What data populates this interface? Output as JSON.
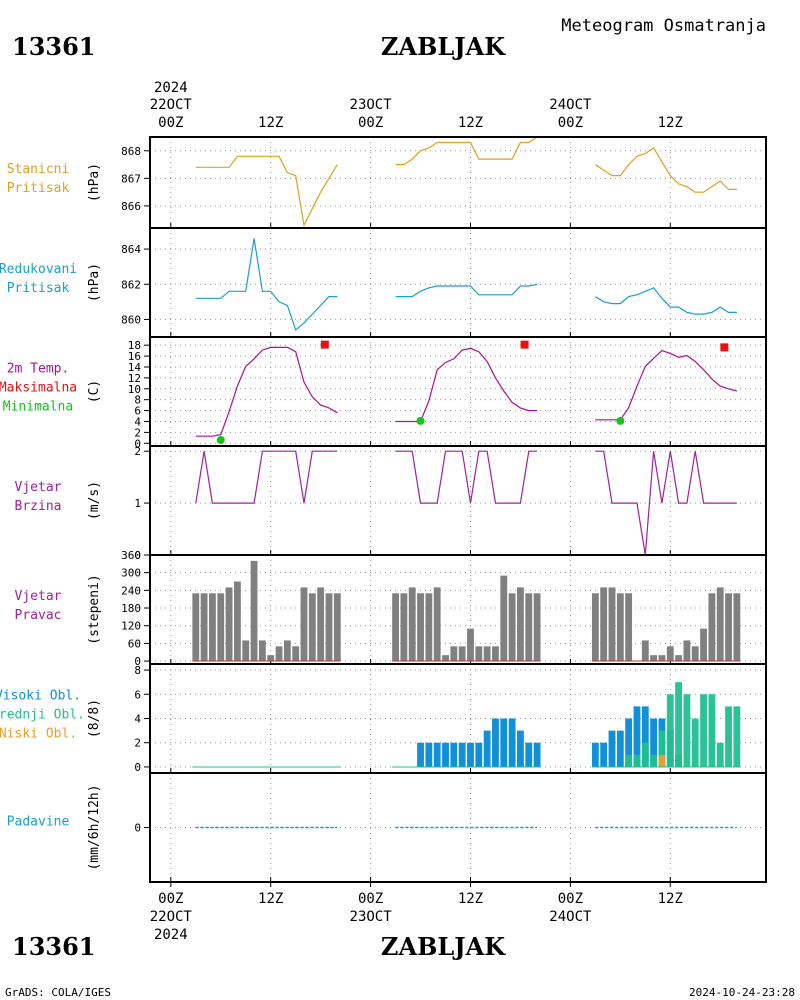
{
  "header": {
    "station_id": "13361",
    "station_name": "ZABLJAK",
    "subtitle": "Meteogram Osmatranja"
  },
  "footer": {
    "station_id": "13361",
    "station_name": "ZABLJAK",
    "credit": "GrADS: COLA/IGES",
    "timestamp": "2024-10-24-23:28"
  },
  "time_axis": {
    "year": "2024",
    "ticks": [
      {
        "hour": 0,
        "top": "00Z",
        "date": "22OCT"
      },
      {
        "hour": 12,
        "top": "12Z",
        "date": ""
      },
      {
        "hour": 24,
        "top": "00Z",
        "date": "23OCT"
      },
      {
        "hour": 36,
        "top": "12Z",
        "date": ""
      },
      {
        "hour": 48,
        "top": "00Z",
        "date": "24OCT"
      },
      {
        "hour": 60,
        "top": "12Z",
        "date": ""
      }
    ]
  },
  "colors": {
    "pressure": "#e0a020",
    "reduced": "#1aa0c8",
    "temp": "#b01090",
    "max": "#e81010",
    "min": "#10c810",
    "wind": "#a020a0",
    "bars": "#808080",
    "low": "#e8a030",
    "mid": "#20c090",
    "high": "#1090d8",
    "precip": "#1aa0c8"
  },
  "chart_data": [
    {
      "type": "line",
      "id": "station-pressure",
      "label": [
        "Stanicni",
        "Pritisak"
      ],
      "ylabel": "(hPa)",
      "ylim": [
        865.2,
        868.5
      ],
      "yticks": [
        866,
        867,
        868
      ],
      "series": [
        {
          "x": [
            3,
            4,
            5,
            6,
            7,
            8,
            9,
            10,
            11,
            12,
            13,
            14,
            15,
            16,
            17,
            18,
            19,
            20
          ],
          "y": [
            867.4,
            867.4,
            867.4,
            867.4,
            867.4,
            867.8,
            867.8,
            867.8,
            867.8,
            867.8,
            867.8,
            867.2,
            867.1,
            865.3,
            865.9,
            866.5,
            867.0,
            867.5
          ]
        },
        {
          "x": [
            27,
            28,
            29,
            30,
            31,
            32,
            33,
            34,
            35,
            36,
            37,
            38,
            39,
            40,
            41,
            42,
            43,
            44
          ],
          "y": [
            867.5,
            867.5,
            867.7,
            868.0,
            868.1,
            868.3,
            868.3,
            868.3,
            868.3,
            868.3,
            867.7,
            867.7,
            867.7,
            867.7,
            867.7,
            868.3,
            868.3,
            868.5
          ]
        },
        {
          "x": [
            51,
            52,
            53,
            54,
            55,
            56,
            57,
            58,
            59,
            60,
            61,
            62,
            63,
            64,
            65,
            66,
            67,
            68
          ],
          "y": [
            867.5,
            867.3,
            867.1,
            867.1,
            867.5,
            867.8,
            867.9,
            868.1,
            867.6,
            867.1,
            866.8,
            866.7,
            866.5,
            866.5,
            866.7,
            866.9,
            866.6,
            866.6
          ]
        }
      ]
    },
    {
      "type": "line",
      "id": "reduced-pressure",
      "label": [
        "Redukovani",
        "Pritisak"
      ],
      "ylabel": "(hPa)",
      "ylim": [
        859.0,
        865.2
      ],
      "yticks": [
        860,
        862,
        864
      ],
      "series": [
        {
          "x": [
            3,
            4,
            5,
            6,
            7,
            8,
            9,
            10,
            11,
            12,
            13,
            14,
            15,
            16,
            17,
            18,
            19,
            20
          ],
          "y": [
            861.2,
            861.2,
            861.2,
            861.2,
            861.6,
            861.6,
            861.6,
            864.6,
            861.6,
            861.6,
            861.0,
            860.8,
            859.4,
            859.8,
            860.3,
            860.8,
            861.3,
            861.3
          ]
        },
        {
          "x": [
            27,
            28,
            29,
            30,
            31,
            32,
            33,
            34,
            35,
            36,
            37,
            38,
            39,
            40,
            41,
            42,
            43,
            44
          ],
          "y": [
            861.3,
            861.3,
            861.3,
            861.6,
            861.8,
            861.9,
            861.9,
            861.9,
            861.9,
            861.9,
            861.4,
            861.4,
            861.4,
            861.4,
            861.4,
            861.9,
            861.9,
            862.0
          ]
        },
        {
          "x": [
            51,
            52,
            53,
            54,
            55,
            56,
            57,
            58,
            59,
            60,
            61,
            62,
            63,
            64,
            65,
            66,
            67,
            68
          ],
          "y": [
            861.3,
            861.0,
            860.9,
            860.9,
            861.3,
            861.4,
            861.6,
            861.8,
            861.2,
            860.7,
            860.7,
            860.4,
            860.3,
            860.3,
            860.4,
            860.7,
            860.4,
            860.4
          ]
        }
      ]
    },
    {
      "type": "line",
      "id": "temperature",
      "label": [
        "2m Temp.",
        "Maksimalna",
        "Minimalna"
      ],
      "ylabel": "(C)",
      "ylim": [
        -0.5,
        19.5
      ],
      "yticks": [
        0,
        2,
        4,
        6,
        8,
        10,
        12,
        14,
        16,
        18
      ],
      "series": [
        {
          "x": [
            3,
            4,
            5,
            6,
            7,
            8,
            9,
            10,
            11,
            12,
            13,
            14,
            15,
            16,
            17,
            18,
            19,
            20
          ],
          "y": [
            1.3,
            1.3,
            1.3,
            1.6,
            5.8,
            10.5,
            14.1,
            15.5,
            17.1,
            17.6,
            17.6,
            17.6,
            16.8,
            11.2,
            8.5,
            7.0,
            6.5,
            5.6
          ]
        },
        {
          "x": [
            27,
            28,
            29,
            30,
            31,
            32,
            33,
            34,
            35,
            36,
            37,
            38,
            39,
            40,
            41,
            42,
            43,
            44
          ],
          "y": [
            4.0,
            4.0,
            4.0,
            4.0,
            7.8,
            13.5,
            14.8,
            15.5,
            17.1,
            17.4,
            16.8,
            15.0,
            12.0,
            9.6,
            7.5,
            6.5,
            6.0,
            6.0
          ]
        },
        {
          "x": [
            51,
            52,
            53,
            54,
            55,
            56,
            57,
            58,
            59,
            60,
            61,
            62,
            63,
            64,
            65,
            66,
            67,
            68
          ],
          "y": [
            4.3,
            4.3,
            4.3,
            4.3,
            6.5,
            10.5,
            14.1,
            15.6,
            17.0,
            16.5,
            15.8,
            16.1,
            15.0,
            13.5,
            11.8,
            10.5,
            10.0,
            9.6
          ]
        }
      ],
      "maximum": [
        {
          "x": 18.5,
          "y": 18.1
        },
        {
          "x": 42.5,
          "y": 18.1
        },
        {
          "x": 66.5,
          "y": 17.6
        }
      ],
      "minimum": [
        {
          "x": 6,
          "y": 0.6
        },
        {
          "x": 30,
          "y": 4.1
        },
        {
          "x": 54,
          "y": 4.1
        }
      ]
    },
    {
      "type": "line",
      "id": "wind-speed",
      "label": [
        "Vjetar",
        "Brzina"
      ],
      "ylabel": "(m/s)",
      "ylim": [
        0,
        2.1
      ],
      "yticks": [
        0,
        1,
        2
      ],
      "series": [
        {
          "x": [
            3,
            4,
            5,
            6,
            7,
            8,
            9,
            10,
            11,
            12,
            13,
            14,
            15,
            16,
            17,
            18,
            19,
            20
          ],
          "y": [
            1,
            2,
            1,
            1,
            1,
            1,
            1,
            1,
            2,
            2,
            2,
            2,
            2,
            1,
            2,
            2,
            2,
            2
          ]
        },
        {
          "x": [
            27,
            28,
            29,
            30,
            31,
            32,
            33,
            34,
            35,
            36,
            37,
            38,
            39,
            40,
            41,
            42,
            43,
            44
          ],
          "y": [
            2,
            2,
            2,
            1,
            1,
            1,
            2,
            2,
            2,
            1,
            2,
            2,
            1,
            1,
            1,
            1,
            2,
            2
          ]
        },
        {
          "x": [
            51,
            52,
            53,
            54,
            55,
            56,
            57,
            58,
            59,
            60,
            61,
            62,
            63,
            64,
            65,
            66,
            67,
            68
          ],
          "y": [
            2,
            2,
            1,
            1,
            1,
            1,
            0,
            2,
            1,
            2,
            1,
            1,
            2,
            1,
            1,
            1,
            1,
            1
          ]
        }
      ]
    },
    {
      "type": "bar",
      "id": "wind-direction",
      "label": [
        "Vjetar",
        "Pravac"
      ],
      "ylabel": "(stepeni)",
      "ylim": [
        -10,
        360
      ],
      "yticks": [
        0,
        60,
        120,
        180,
        240,
        300,
        360
      ],
      "x": [
        3,
        4,
        5,
        6,
        7,
        8,
        9,
        10,
        11,
        12,
        13,
        14,
        15,
        16,
        17,
        18,
        19,
        20,
        27,
        28,
        29,
        30,
        31,
        32,
        33,
        34,
        35,
        36,
        37,
        38,
        39,
        40,
        41,
        42,
        43,
        44,
        51,
        52,
        53,
        54,
        55,
        56,
        57,
        58,
        59,
        60,
        61,
        62,
        63,
        64,
        65,
        66,
        67,
        68
      ],
      "values": [
        230,
        230,
        230,
        230,
        250,
        270,
        70,
        340,
        70,
        20,
        50,
        70,
        50,
        250,
        230,
        250,
        230,
        230,
        230,
        230,
        250,
        230,
        230,
        250,
        20,
        50,
        50,
        110,
        50,
        50,
        50,
        290,
        230,
        250,
        230,
        230,
        230,
        250,
        250,
        230,
        230,
        0,
        70,
        20,
        20,
        50,
        20,
        70,
        50,
        110,
        230,
        250,
        230,
        230
      ]
    },
    {
      "type": "bar",
      "id": "cloud-cover",
      "label": [
        "Visoki Obl.",
        "Srednji Obl.",
        "Niski Obl."
      ],
      "ylabel": "(8/8)",
      "ylim": [
        -0.5,
        8.5
      ],
      "yticks": [
        0,
        2,
        4,
        6,
        8
      ],
      "x": [
        3,
        4,
        5,
        6,
        7,
        8,
        9,
        10,
        11,
        12,
        13,
        14,
        15,
        16,
        17,
        18,
        19,
        20,
        27,
        28,
        29,
        30,
        31,
        32,
        33,
        34,
        35,
        36,
        37,
        38,
        39,
        40,
        41,
        42,
        43,
        44,
        51,
        52,
        53,
        54,
        55,
        56,
        57,
        58,
        59,
        60,
        61,
        62,
        63,
        64,
        65,
        66,
        67,
        68
      ],
      "series": [
        {
          "name": "Visoki Obl.",
          "values": [
            0,
            0,
            0,
            0,
            0,
            0,
            0,
            0,
            0,
            0,
            0,
            0,
            0,
            0,
            0,
            0,
            0,
            0,
            0,
            0,
            0,
            2,
            2,
            2,
            2,
            2,
            2,
            2,
            2,
            3,
            4,
            4,
            4,
            3,
            2,
            2,
            2,
            2,
            3,
            3,
            4,
            5,
            5,
            4,
            4,
            3,
            1,
            0,
            0,
            0,
            0,
            0,
            0,
            0
          ]
        },
        {
          "name": "Srednji Obl.",
          "values": [
            0,
            0,
            0,
            0,
            0,
            0,
            0,
            0,
            0,
            0,
            0,
            0,
            0,
            0,
            0,
            0,
            0,
            0,
            0,
            0,
            0,
            0,
            0,
            0,
            0,
            0,
            0,
            0,
            0,
            0,
            0,
            0,
            0,
            0,
            0,
            0,
            0,
            0,
            0,
            0,
            1,
            1,
            2,
            1,
            3,
            6,
            7,
            6,
            4,
            6,
            6,
            2,
            5,
            5
          ]
        },
        {
          "name": "Niski Obl.",
          "values": [
            0,
            0,
            0,
            0,
            0,
            0,
            0,
            0,
            0,
            0,
            0,
            0,
            0,
            0,
            0,
            0,
            0,
            0,
            0,
            0,
            0,
            0,
            0,
            0,
            0,
            0,
            0,
            0,
            0,
            0,
            0,
            0,
            0,
            0,
            0,
            0,
            0,
            0,
            0,
            0,
            0,
            0,
            0,
            0,
            1,
            0,
            0,
            0,
            0,
            0,
            0,
            0,
            0,
            0
          ]
        }
      ]
    },
    {
      "type": "bar",
      "id": "precipitation",
      "label": [
        "Padavine"
      ],
      "ylabel": "(mm/6h/12h)",
      "ylim": [
        -1,
        1
      ],
      "yticks": [
        0
      ],
      "x": [
        3,
        4,
        5,
        6,
        7,
        8,
        9,
        10,
        11,
        12,
        13,
        14,
        15,
        16,
        17,
        18,
        19,
        20,
        27,
        28,
        29,
        30,
        31,
        32,
        33,
        34,
        35,
        36,
        37,
        38,
        39,
        40,
        41,
        42,
        43,
        44,
        51,
        52,
        53,
        54,
        55,
        56,
        57,
        58,
        59,
        60,
        61,
        62,
        63,
        64,
        65,
        66,
        67,
        68
      ],
      "values": [
        0,
        0,
        0,
        0,
        0,
        0,
        0,
        0,
        0,
        0,
        0,
        0,
        0,
        0,
        0,
        0,
        0,
        0,
        0,
        0,
        0,
        0,
        0,
        0,
        0,
        0,
        0,
        0,
        0,
        0,
        0,
        0,
        0,
        0,
        0,
        0,
        0,
        0,
        0,
        0,
        0,
        0,
        0,
        0,
        0,
        0,
        0,
        0,
        0,
        0,
        0,
        0,
        0,
        0
      ]
    }
  ]
}
